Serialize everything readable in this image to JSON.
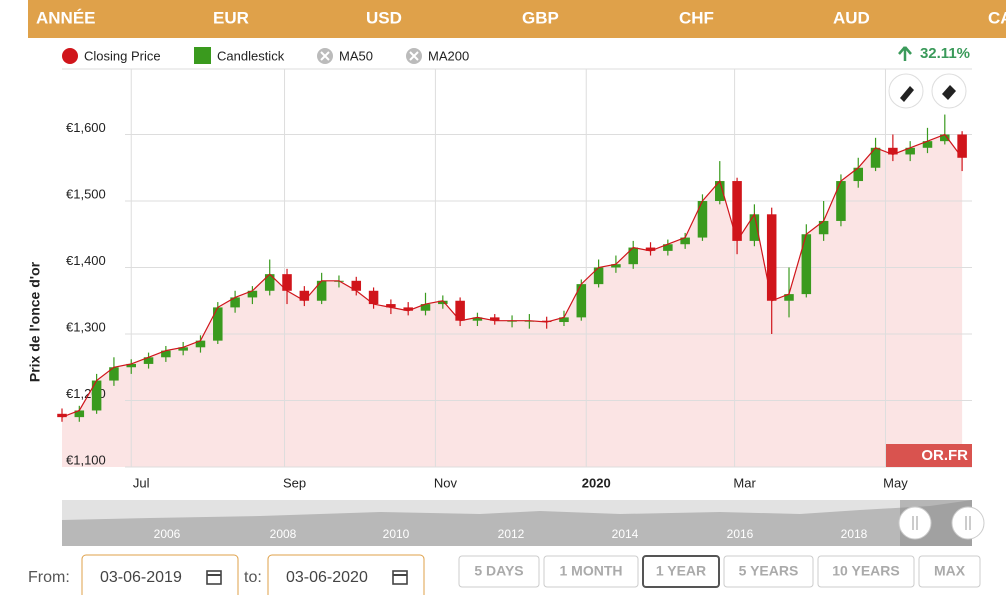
{
  "tabs": [
    "ANNÉE",
    "EUR",
    "USD",
    "GBP",
    "CHF",
    "AUD",
    "CAD"
  ],
  "chart_data": {
    "type": "candlestick",
    "legend": [
      {
        "name": "Closing Price",
        "color": "#d0151b"
      },
      {
        "name": "Candlestick",
        "color": "#3a9a1e"
      },
      {
        "name": "MA50",
        "color": "#bbbbbb"
      },
      {
        "name": "MA200",
        "color": "#bbbbbb"
      }
    ],
    "change": "32.11%",
    "y_label": "Prix de l'once d'or",
    "logo": "OR.FR",
    "up_color": "#3a9a1e",
    "down_color": "#d0151b",
    "line_color": "#d0151b",
    "area_color": "#fbe4e4",
    "xlim": [
      0,
      368
    ],
    "xticks": [
      {
        "value": 28,
        "label": "Jul"
      },
      {
        "value": 90,
        "label": "Sep"
      },
      {
        "value": 151,
        "label": "Nov"
      },
      {
        "value": 212,
        "label": "2020"
      },
      {
        "value": 272,
        "label": "Mar"
      },
      {
        "value": 333,
        "label": "May"
      }
    ],
    "ylim": [
      1100,
      1700
    ],
    "yticks": [
      {
        "value": 1100,
        "label": "€1,100"
      },
      {
        "value": 1200,
        "label": "€1,200"
      },
      {
        "value": 1300,
        "label": "€1,300"
      },
      {
        "value": 1400,
        "label": "€1,400"
      },
      {
        "value": 1500,
        "label": "€1,500"
      },
      {
        "value": 1600,
        "label": "€1,600"
      }
    ],
    "grid": true,
    "x": [
      0,
      7,
      14,
      21,
      28,
      35,
      42,
      49,
      56,
      63,
      70,
      77,
      84,
      91,
      98,
      105,
      112,
      119,
      126,
      133,
      140,
      147,
      154,
      161,
      168,
      175,
      182,
      189,
      196,
      203,
      210,
      217,
      224,
      231,
      238,
      245,
      252,
      259,
      266,
      273,
      280,
      287,
      294,
      301,
      308,
      315,
      322,
      329,
      336,
      343,
      350,
      357,
      364
    ],
    "open": [
      1180,
      1175,
      1185,
      1230,
      1250,
      1255,
      1265,
      1275,
      1280,
      1290,
      1340,
      1355,
      1365,
      1390,
      1365,
      1350,
      1380,
      1380,
      1365,
      1345,
      1340,
      1335,
      1345,
      1350,
      1320,
      1325,
      1320,
      1320,
      1320,
      1318,
      1325,
      1375,
      1400,
      1405,
      1430,
      1425,
      1435,
      1445,
      1500,
      1530,
      1440,
      1480,
      1350,
      1360,
      1450,
      1470,
      1530,
      1550,
      1580,
      1570,
      1580,
      1590,
      1600
    ],
    "high": [
      1188,
      1192,
      1240,
      1265,
      1262,
      1272,
      1282,
      1288,
      1298,
      1348,
      1365,
      1372,
      1412,
      1398,
      1372,
      1392,
      1388,
      1386,
      1370,
      1352,
      1348,
      1362,
      1358,
      1355,
      1332,
      1330,
      1328,
      1330,
      1326,
      1335,
      1382,
      1412,
      1418,
      1440,
      1438,
      1442,
      1452,
      1510,
      1560,
      1535,
      1495,
      1490,
      1400,
      1465,
      1500,
      1540,
      1565,
      1595,
      1600,
      1590,
      1610,
      1630,
      1605
    ],
    "low": [
      1168,
      1168,
      1180,
      1222,
      1240,
      1248,
      1258,
      1268,
      1272,
      1285,
      1332,
      1345,
      1358,
      1345,
      1342,
      1345,
      1370,
      1358,
      1338,
      1330,
      1328,
      1328,
      1338,
      1312,
      1312,
      1314,
      1310,
      1308,
      1308,
      1312,
      1320,
      1370,
      1392,
      1398,
      1418,
      1418,
      1428,
      1440,
      1495,
      1420,
      1432,
      1300,
      1325,
      1355,
      1440,
      1462,
      1520,
      1545,
      1560,
      1560,
      1572,
      1585,
      1545
    ],
    "close": [
      1175,
      1185,
      1230,
      1250,
      1255,
      1265,
      1275,
      1280,
      1290,
      1340,
      1355,
      1365,
      1390,
      1365,
      1350,
      1380,
      1380,
      1365,
      1345,
      1340,
      1335,
      1345,
      1350,
      1320,
      1325,
      1320,
      1320,
      1320,
      1318,
      1325,
      1375,
      1400,
      1405,
      1430,
      1425,
      1435,
      1445,
      1500,
      1530,
      1440,
      1480,
      1350,
      1360,
      1450,
      1470,
      1530,
      1550,
      1580,
      1570,
      1580,
      1590,
      1600,
      1565
    ]
  },
  "navigator": [
    "2006",
    "2008",
    "2010",
    "2012",
    "2014",
    "2016",
    "2018"
  ],
  "range": {
    "from_label": "From:",
    "from": "03-06-2019",
    "to_label": "to:",
    "to": "03-06-2020"
  },
  "buttons": [
    "5 DAYS",
    "1 MONTH",
    "1 YEAR",
    "5 YEARS",
    "10 YEARS",
    "MAX"
  ]
}
